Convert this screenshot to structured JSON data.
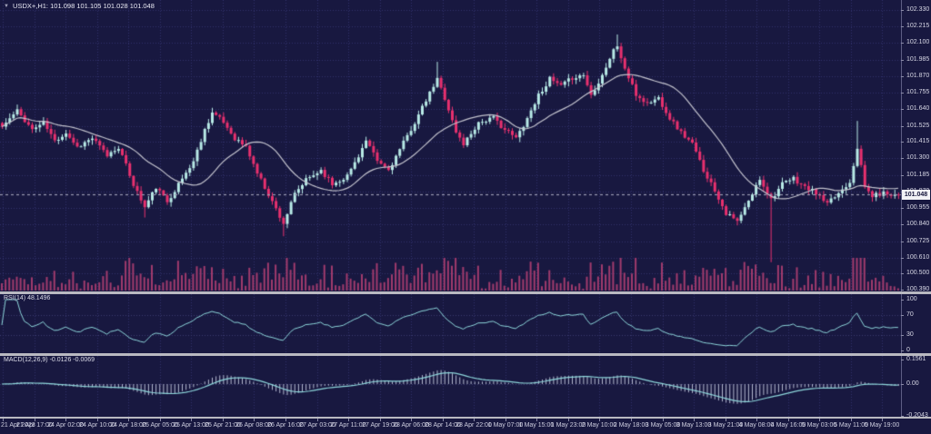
{
  "header": {
    "dropdown_icon": "▼",
    "symbol_period": "USDX+,H1:",
    "open": "101.098",
    "high": "101.105",
    "low": "101.028",
    "close": "101.048"
  },
  "price_axis": {
    "labels": [
      "102.330",
      "102.215",
      "102.100",
      "101.985",
      "101.870",
      "101.755",
      "101.640",
      "101.525",
      "101.415",
      "101.300",
      "101.185",
      "101.070",
      "100.955",
      "100.840",
      "100.725",
      "100.610",
      "100.500",
      "100.390"
    ],
    "current_price": "101.048"
  },
  "rsi_panel": {
    "title": "RSI(14)",
    "value": "48.1496",
    "axis_labels": [
      "100",
      "70",
      "30",
      "0"
    ],
    "levels": [
      70,
      30
    ],
    "range": [
      0,
      100
    ]
  },
  "macd_panel": {
    "title": "MACD(12,26,9)",
    "values": "-0.0126 -0.0069",
    "axis_labels": [
      "0.1561",
      "0.00",
      "-0.2043"
    ],
    "range": [
      -0.209,
      0.18
    ]
  },
  "time_axis": {
    "labels": [
      "21 Apr 2023",
      "21 Apr 17:00",
      "24 Apr 02:00",
      "24 Apr 10:00",
      "24 Apr 18:00",
      "25 Apr 05:00",
      "25 Apr 13:00",
      "25 Apr 21:00",
      "26 Apr 08:00",
      "26 Apr 16:00",
      "27 Apr 03:00",
      "27 Apr 11:00",
      "27 Apr 19:00",
      "28 Apr 06:00",
      "28 Apr 14:00",
      "28 Apr 22:00",
      "1 May 07:00",
      "1 May 15:00",
      "1 May 23:00",
      "2 May 10:00",
      "2 May 18:00",
      "3 May 05:00",
      "3 May 13:00",
      "3 May 21:00",
      "4 May 08:00",
      "4 May 16:00",
      "5 May 03:00",
      "5 May 11:00",
      "5 May 19:00"
    ]
  },
  "chart_data": {
    "type": "candlestick",
    "symbol": "USDX+",
    "period": "H1",
    "ohlc_current": {
      "open": 101.098,
      "high": 101.105,
      "low": 101.028,
      "close": 101.048
    },
    "ylim": [
      100.377,
      102.399
    ],
    "num_candles": 240,
    "last_close": 101.048,
    "ma_period": 20,
    "rsi_period": 14,
    "rsi_last": 48.1496,
    "macd_params": [
      12,
      26,
      9
    ],
    "macd_last": [
      -0.0126,
      -0.0069
    ],
    "noise_seed": 11,
    "noise_amp": 0.016,
    "close_anchors": [
      [
        0,
        101.52
      ],
      [
        4,
        101.63
      ],
      [
        8,
        101.5
      ],
      [
        11,
        101.55
      ],
      [
        14,
        101.42
      ],
      [
        17,
        101.48
      ],
      [
        20,
        101.38
      ],
      [
        24,
        101.44
      ],
      [
        28,
        101.32
      ],
      [
        31,
        101.38
      ],
      [
        35,
        101.12
      ],
      [
        38,
        100.96
      ],
      [
        41,
        101.1
      ],
      [
        44,
        101.0
      ],
      [
        47,
        101.12
      ],
      [
        51,
        101.28
      ],
      [
        54,
        101.5
      ],
      [
        56,
        101.62
      ],
      [
        59,
        101.55
      ],
      [
        62,
        101.44
      ],
      [
        65,
        101.38
      ],
      [
        68,
        101.2
      ],
      [
        72,
        101.0
      ],
      [
        75,
        100.85
      ],
      [
        78,
        101.05
      ],
      [
        81,
        101.15
      ],
      [
        85,
        101.22
      ],
      [
        88,
        101.12
      ],
      [
        92,
        101.18
      ],
      [
        95,
        101.32
      ],
      [
        97,
        101.42
      ],
      [
        100,
        101.28
      ],
      [
        103,
        101.22
      ],
      [
        106,
        101.36
      ],
      [
        110,
        101.55
      ],
      [
        113,
        101.7
      ],
      [
        116,
        101.85
      ],
      [
        118,
        101.72
      ],
      [
        121,
        101.48
      ],
      [
        123,
        101.4
      ],
      [
        127,
        101.55
      ],
      [
        131,
        101.58
      ],
      [
        134,
        101.5
      ],
      [
        137,
        101.44
      ],
      [
        140,
        101.58
      ],
      [
        143,
        101.74
      ],
      [
        146,
        101.85
      ],
      [
        149,
        101.8
      ],
      [
        152,
        101.86
      ],
      [
        155,
        101.88
      ],
      [
        157,
        101.74
      ],
      [
        160,
        101.88
      ],
      [
        163,
        102.05
      ],
      [
        164,
        102.08
      ],
      [
        166,
        101.92
      ],
      [
        169,
        101.74
      ],
      [
        172,
        101.68
      ],
      [
        175,
        101.72
      ],
      [
        178,
        101.58
      ],
      [
        181,
        101.48
      ],
      [
        184,
        101.4
      ],
      [
        187,
        101.22
      ],
      [
        190,
        101.08
      ],
      [
        193,
        100.92
      ],
      [
        196,
        100.86
      ],
      [
        199,
        101.0
      ],
      [
        202,
        101.16
      ],
      [
        205,
        101.02
      ],
      [
        208,
        101.12
      ],
      [
        211,
        101.16
      ],
      [
        214,
        101.1
      ],
      [
        217,
        101.06
      ],
      [
        220,
        100.98
      ],
      [
        223,
        101.06
      ],
      [
        226,
        101.14
      ],
      [
        228,
        101.38
      ],
      [
        230,
        101.1
      ],
      [
        232,
        101.04
      ],
      [
        235,
        101.06
      ],
      [
        239,
        101.048
      ]
    ],
    "wick_overrides": [
      {
        "i": 38,
        "low": 100.89
      },
      {
        "i": 75,
        "low": 100.76
      },
      {
        "i": 116,
        "high": 101.97
      },
      {
        "i": 164,
        "high": 102.16
      },
      {
        "i": 205,
        "low": 100.58
      },
      {
        "i": 228,
        "high": 101.56
      }
    ]
  },
  "colors": {
    "background": "#181840",
    "grid": "#32326b",
    "level_line": "#3c3c70",
    "bull": "#b8eae6",
    "bear": "#e8306e",
    "ma_line": "#c4c4ce",
    "volume": "#a13b6d",
    "indicator_line": "#8ed7db",
    "macd_histogram": "#b4b9cf",
    "axis_text": "#d6d6e4",
    "separator": "#b9b9c1",
    "current_price_line": "#9a9ab2",
    "price_tag_bg": "#f2f2f6",
    "price_tag_text": "#14143a"
  }
}
